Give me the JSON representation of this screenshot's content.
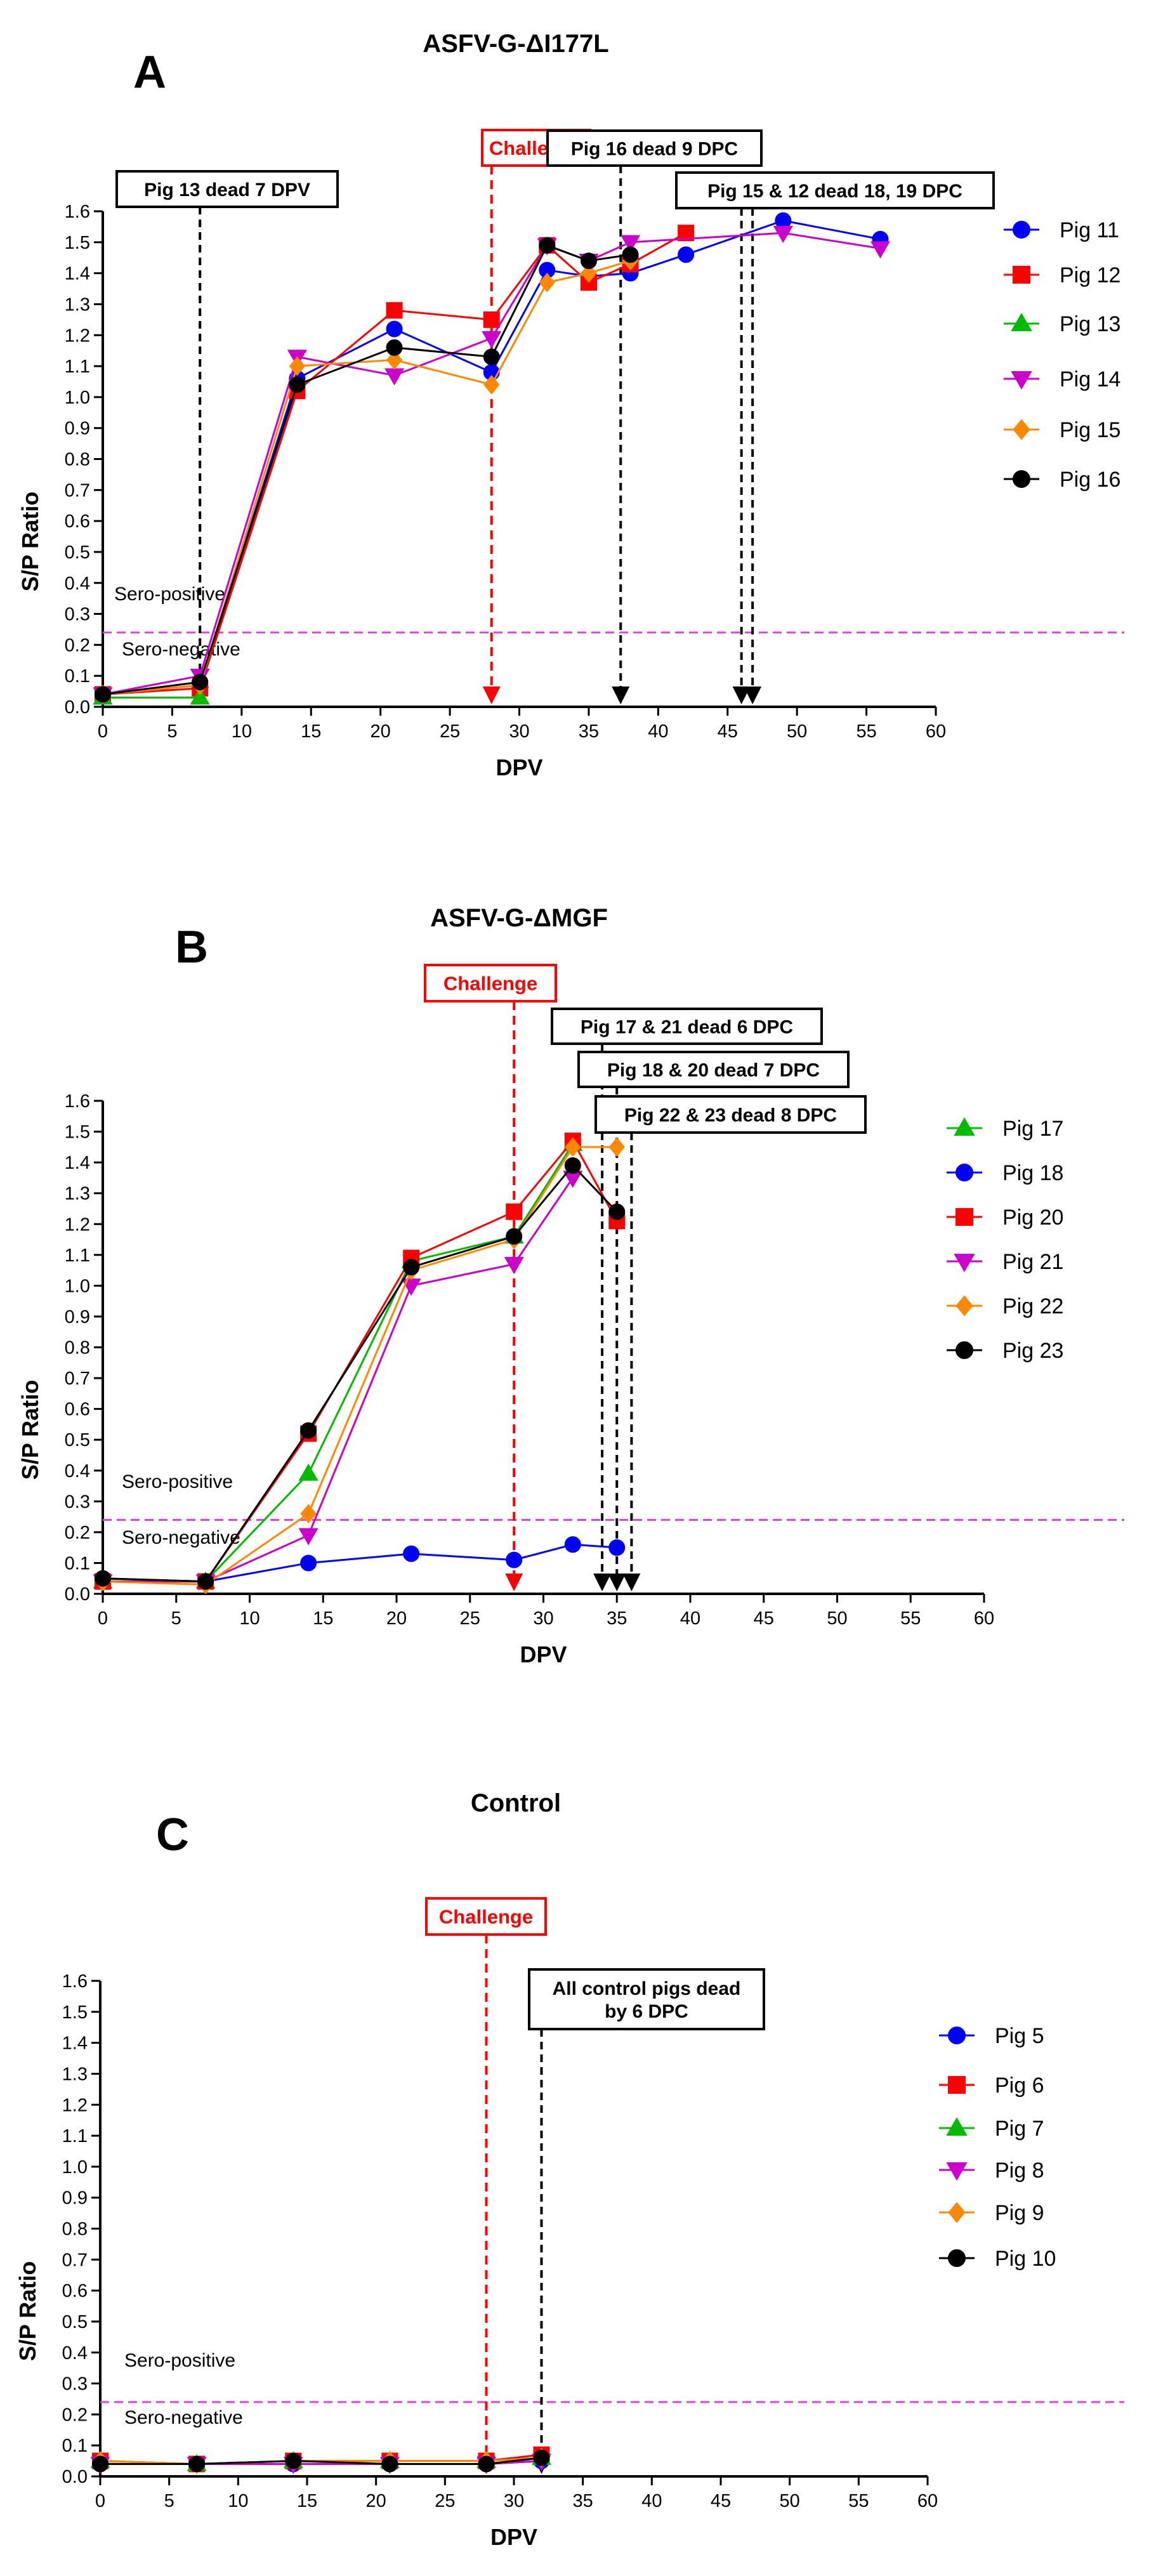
{
  "colors": {
    "challenge_line": "#ff0000",
    "death_line": "#000000",
    "threshold_line": "#dd44dd",
    "axis": "#000000"
  },
  "markers": {
    "Pig 5": {
      "color": "#0000ff",
      "shape": "circle"
    },
    "Pig 6": {
      "color": "#ff0000",
      "shape": "square"
    },
    "Pig 7": {
      "color": "#00bb00",
      "shape": "triangle-up"
    },
    "Pig 8": {
      "color": "#cc00cc",
      "shape": "triangle-down"
    },
    "Pig 9": {
      "color": "#ff8800",
      "shape": "diamond"
    },
    "Pig 10": {
      "color": "#000000",
      "shape": "circle"
    },
    "Pig 11": {
      "color": "#0000ff",
      "shape": "circle"
    },
    "Pig 12": {
      "color": "#ff0000",
      "shape": "square"
    },
    "Pig 13": {
      "color": "#00bb00",
      "shape": "triangle-up"
    },
    "Pig 14": {
      "color": "#cc00cc",
      "shape": "triangle-down"
    },
    "Pig 15": {
      "color": "#ff8800",
      "shape": "diamond"
    },
    "Pig 16": {
      "color": "#000000",
      "shape": "circle"
    },
    "Pig 17": {
      "color": "#00bb00",
      "shape": "triangle-up"
    },
    "Pig 18": {
      "color": "#0000ff",
      "shape": "circle"
    },
    "Pig 20": {
      "color": "#ff0000",
      "shape": "square"
    },
    "Pig 21": {
      "color": "#cc00cc",
      "shape": "triangle-down"
    },
    "Pig 22": {
      "color": "#ff8800",
      "shape": "diamond"
    },
    "Pig 23": {
      "color": "#000000",
      "shape": "circle"
    }
  },
  "chart_data": [
    {
      "type": "line",
      "panel_letter": "A",
      "title": "ASFV-G-ΔI177L",
      "xlabel": "DPV",
      "ylabel": "S/P Ratio",
      "xlim": [
        0,
        60
      ],
      "ylim": [
        0,
        1.6
      ],
      "xticks": [
        0,
        5,
        10,
        15,
        20,
        25,
        30,
        35,
        40,
        45,
        50,
        55,
        60
      ],
      "yticks": [
        0.0,
        0.1,
        0.2,
        0.3,
        0.4,
        0.5,
        0.6,
        0.7,
        0.8,
        0.9,
        1.0,
        1.1,
        1.2,
        1.3,
        1.4,
        1.5,
        1.6
      ],
      "threshold": {
        "value": 0.24,
        "above_label": "Sero-positive",
        "below_label": "Sero-negative"
      },
      "challenge": {
        "x": 28,
        "label": "Challenge"
      },
      "deaths": [
        {
          "label": "Pig 13 dead 7 DPV",
          "x": [
            7
          ]
        },
        {
          "label": "Pig 16 dead 9 DPC",
          "x": [
            37.3
          ]
        },
        {
          "label": "Pig 15 & 12 dead 18, 19 DPC",
          "x": [
            46,
            46.8
          ]
        }
      ],
      "legend_location": "right",
      "series": [
        {
          "name": "Pig 11",
          "x": [
            0,
            7,
            14,
            21,
            28,
            32,
            35,
            38,
            42,
            49,
            56
          ],
          "y": [
            0.04,
            0.07,
            1.06,
            1.22,
            1.08,
            1.41,
            1.39,
            1.4,
            1.46,
            1.57,
            1.51
          ]
        },
        {
          "name": "Pig 12",
          "x": [
            0,
            7,
            14,
            21,
            28,
            32,
            35,
            38,
            42
          ],
          "y": [
            0.04,
            0.06,
            1.02,
            1.28,
            1.25,
            1.49,
            1.37,
            1.43,
            1.53
          ]
        },
        {
          "name": "Pig 13",
          "x": [
            0,
            7
          ],
          "y": [
            0.03,
            0.03
          ]
        },
        {
          "name": "Pig 14",
          "x": [
            0,
            7,
            14,
            21,
            28,
            32,
            35,
            38,
            49,
            56
          ],
          "y": [
            0.04,
            0.1,
            1.13,
            1.07,
            1.19,
            1.49,
            1.44,
            1.5,
            1.53,
            1.48
          ]
        },
        {
          "name": "Pig 15",
          "x": [
            0,
            7,
            14,
            21,
            28,
            32,
            35,
            38
          ],
          "y": [
            0.04,
            0.07,
            1.1,
            1.12,
            1.04,
            1.37,
            1.4,
            1.44
          ]
        },
        {
          "name": "Pig 16",
          "x": [
            0,
            7,
            14,
            21,
            28,
            32,
            35,
            38
          ],
          "y": [
            0.04,
            0.08,
            1.04,
            1.16,
            1.13,
            1.49,
            1.44,
            1.46
          ]
        }
      ]
    },
    {
      "type": "line",
      "panel_letter": "B",
      "title": "ASFV-G-ΔMGF",
      "xlabel": "DPV",
      "ylabel": "S/P Ratio",
      "xlim": [
        0,
        60
      ],
      "ylim": [
        0,
        1.6
      ],
      "xticks": [
        0,
        5,
        10,
        15,
        20,
        25,
        30,
        35,
        40,
        45,
        50,
        55,
        60
      ],
      "yticks": [
        0.0,
        0.1,
        0.2,
        0.3,
        0.4,
        0.5,
        0.6,
        0.7,
        0.8,
        0.9,
        1.0,
        1.1,
        1.2,
        1.3,
        1.4,
        1.5,
        1.6
      ],
      "threshold": {
        "value": 0.24,
        "above_label": "Sero-positive",
        "below_label": "Sero-negative"
      },
      "challenge": {
        "x": 28,
        "label": "Challenge"
      },
      "deaths": [
        {
          "label": "Pig 17 & 21 dead 6 DPC",
          "x": [
            34
          ]
        },
        {
          "label": "Pig 18 & 20 dead 7 DPC",
          "x": [
            35
          ]
        },
        {
          "label": "Pig 22 & 23 dead 8 DPC",
          "x": [
            36
          ]
        }
      ],
      "legend_location": "right",
      "series": [
        {
          "name": "Pig 17",
          "x": [
            0,
            7,
            14,
            21,
            28,
            32
          ],
          "y": [
            0.04,
            0.04,
            0.39,
            1.08,
            1.16,
            1.46
          ]
        },
        {
          "name": "Pig 18",
          "x": [
            0,
            7,
            14,
            21,
            28,
            32,
            35
          ],
          "y": [
            0.05,
            0.04,
            0.1,
            0.13,
            0.11,
            0.16,
            0.15
          ]
        },
        {
          "name": "Pig 20",
          "x": [
            0,
            7,
            14,
            21,
            28,
            32,
            35
          ],
          "y": [
            0.04,
            0.04,
            0.52,
            1.09,
            1.24,
            1.47,
            1.21
          ]
        },
        {
          "name": "Pig 21",
          "x": [
            0,
            7,
            14,
            21,
            28,
            32
          ],
          "y": [
            0.04,
            0.04,
            0.19,
            1.0,
            1.07,
            1.35
          ]
        },
        {
          "name": "Pig 22",
          "x": [
            0,
            7,
            14,
            21,
            28,
            32,
            35
          ],
          "y": [
            0.04,
            0.03,
            0.26,
            1.05,
            1.15,
            1.45,
            1.45
          ]
        },
        {
          "name": "Pig 23",
          "x": [
            0,
            7,
            14,
            21,
            28,
            32,
            35
          ],
          "y": [
            0.05,
            0.04,
            0.53,
            1.06,
            1.16,
            1.39,
            1.24
          ]
        }
      ]
    },
    {
      "type": "line",
      "panel_letter": "C",
      "title": "Control",
      "xlabel": "DPV",
      "ylabel": "S/P Ratio",
      "xlim": [
        0,
        60
      ],
      "ylim": [
        0,
        1.6
      ],
      "xticks": [
        0,
        5,
        10,
        15,
        20,
        25,
        30,
        35,
        40,
        45,
        50,
        55,
        60
      ],
      "yticks": [
        0.0,
        0.1,
        0.2,
        0.3,
        0.4,
        0.5,
        0.6,
        0.7,
        0.8,
        0.9,
        1.0,
        1.1,
        1.2,
        1.3,
        1.4,
        1.5,
        1.6
      ],
      "threshold": {
        "value": 0.24,
        "above_label": "Sero-positive",
        "below_label": "Sero-negative"
      },
      "challenge": {
        "x": 28,
        "label": "Challenge"
      },
      "deaths": [
        {
          "label": "All control pigs dead\nby 6 DPC",
          "x": [
            32
          ]
        }
      ],
      "legend_location": "right",
      "series": [
        {
          "name": "Pig 5",
          "x": [
            0,
            7,
            14,
            21,
            28,
            32
          ],
          "y": [
            0.04,
            0.04,
            0.04,
            0.04,
            0.04,
            0.05
          ]
        },
        {
          "name": "Pig 6",
          "x": [
            0,
            7,
            14,
            21,
            28,
            32
          ],
          "y": [
            0.05,
            0.04,
            0.05,
            0.05,
            0.05,
            0.07
          ]
        },
        {
          "name": "Pig 7",
          "x": [
            0,
            7,
            14,
            21,
            28,
            32
          ],
          "y": [
            0.05,
            0.04,
            0.05,
            0.05,
            0.05,
            0.06
          ]
        },
        {
          "name": "Pig 8",
          "x": [
            0,
            7,
            14,
            21,
            28,
            32
          ],
          "y": [
            0.04,
            0.04,
            0.04,
            0.04,
            0.04,
            0.05
          ]
        },
        {
          "name": "Pig 9",
          "x": [
            0,
            7,
            14,
            21,
            28,
            32
          ],
          "y": [
            0.05,
            0.04,
            0.05,
            0.05,
            0.05,
            0.06
          ]
        },
        {
          "name": "Pig 10",
          "x": [
            0,
            7,
            14,
            21,
            28,
            32
          ],
          "y": [
            0.04,
            0.04,
            0.05,
            0.04,
            0.04,
            0.06
          ]
        }
      ]
    }
  ]
}
